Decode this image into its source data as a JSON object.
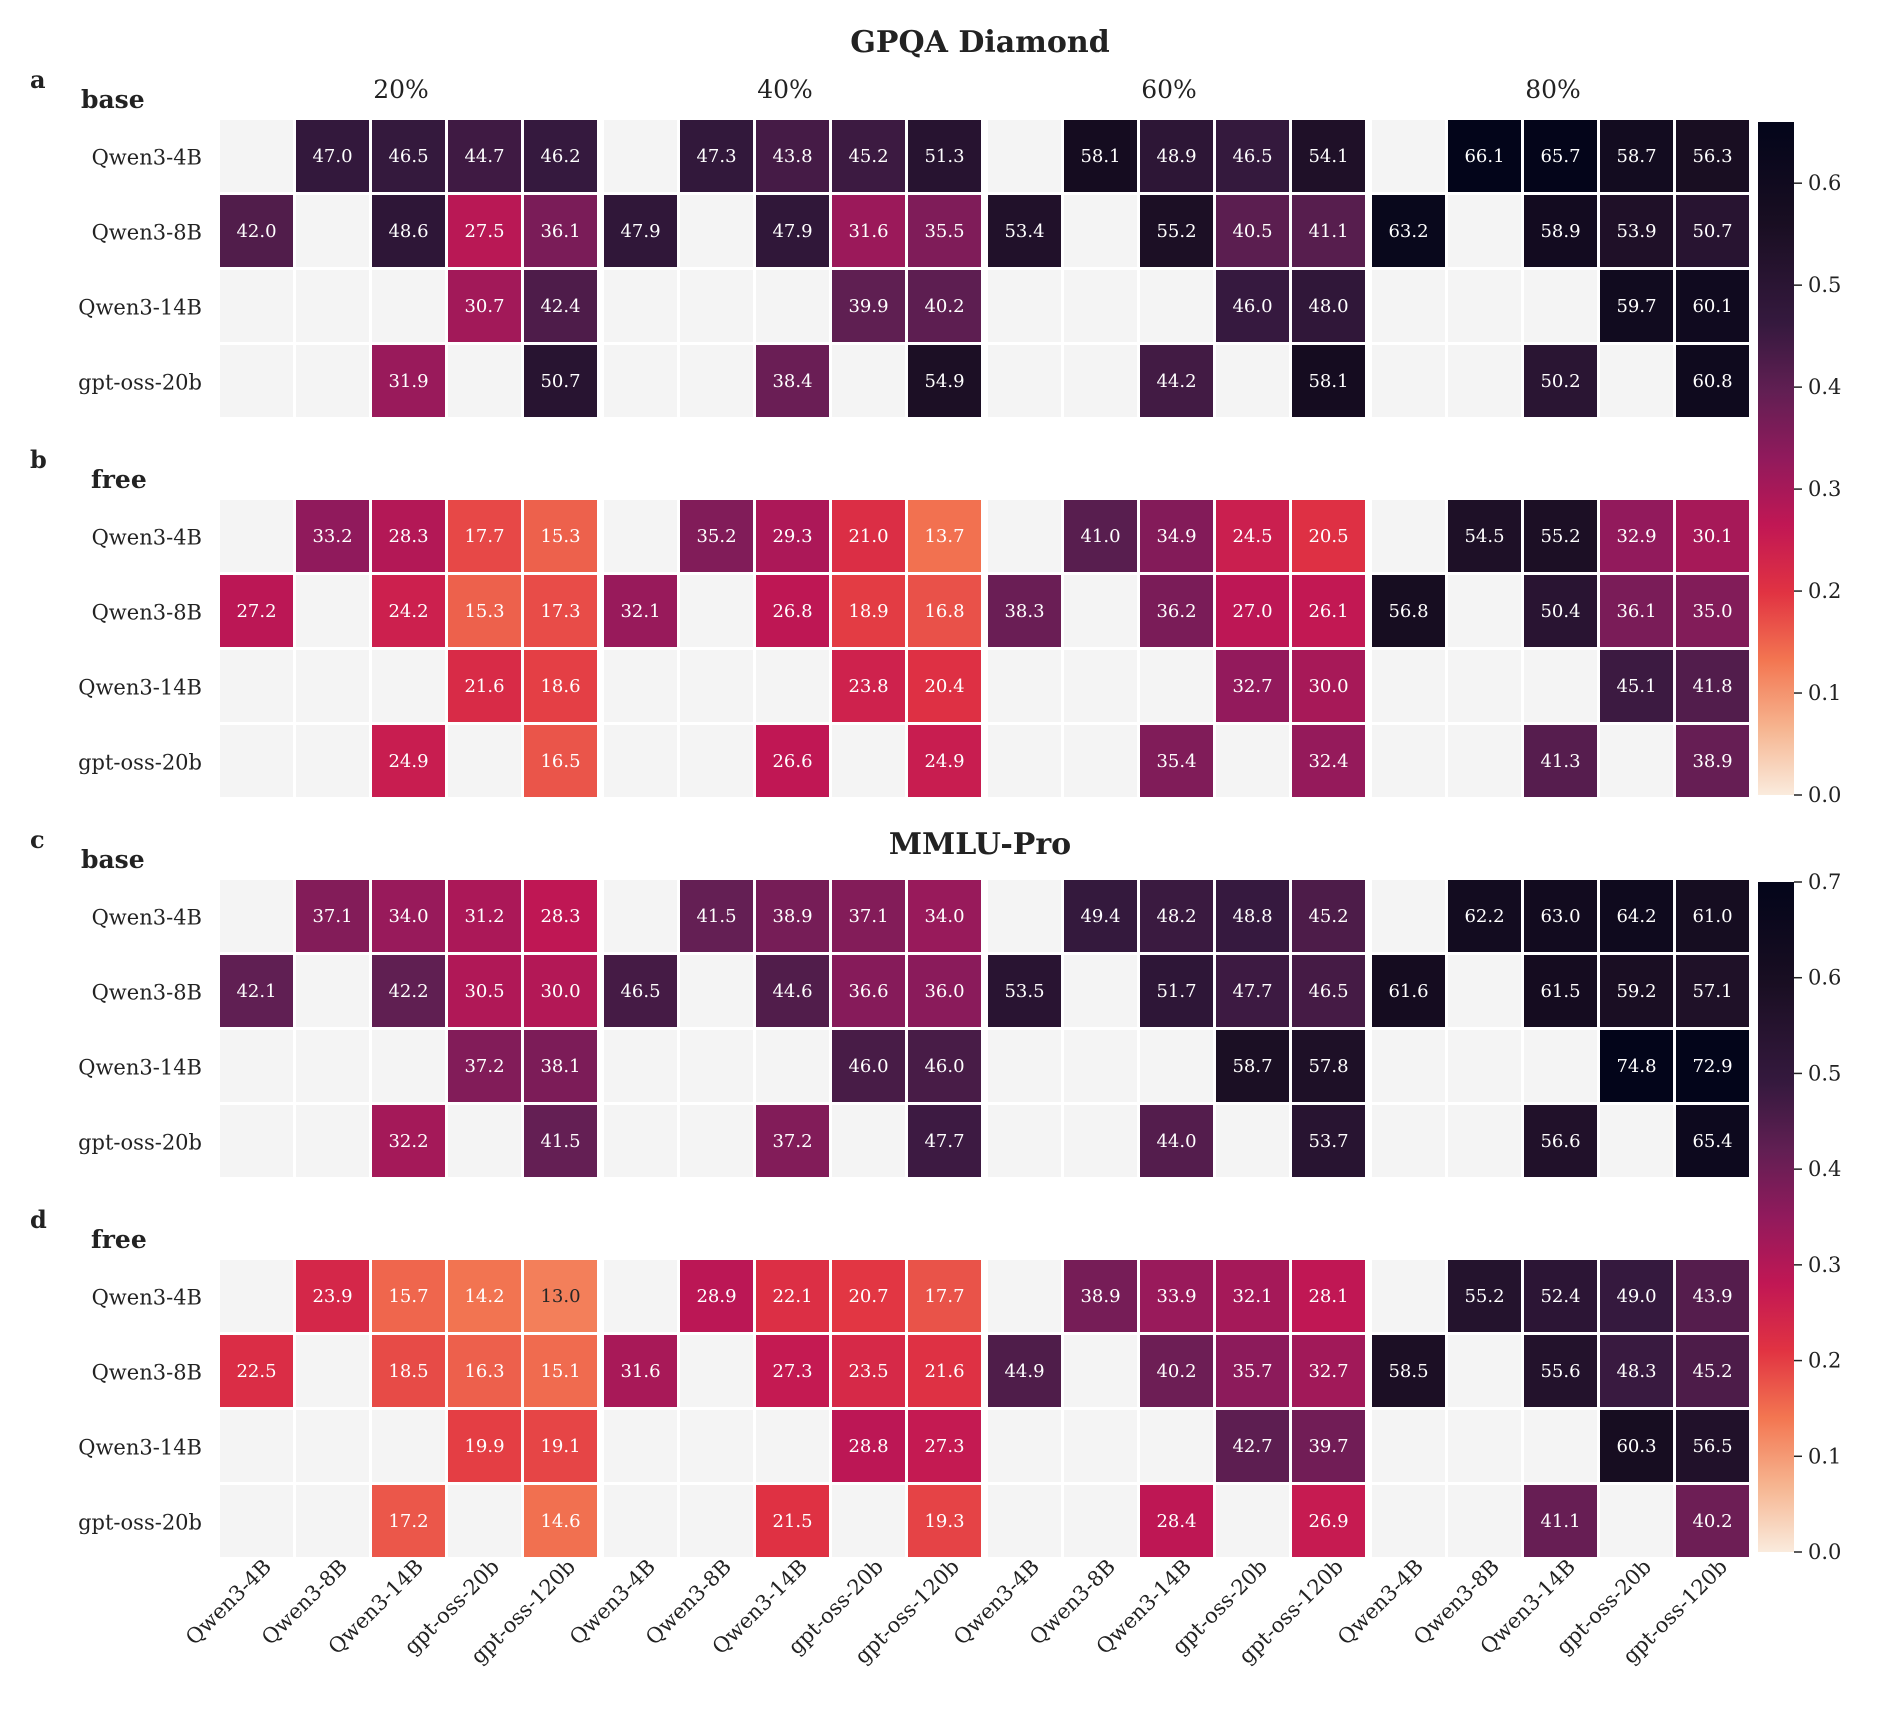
{
  "figure": {
    "titles": [
      "GPQA Diamond",
      "MMLU-Pro"
    ],
    "percentages": [
      "20%",
      "40%",
      "60%",
      "80%"
    ],
    "row_labels": [
      "Qwen3-4B",
      "Qwen3-8B",
      "Qwen3-14B",
      "gpt-oss-20b"
    ],
    "col_labels": [
      "Qwen3-4B",
      "Qwen3-8B",
      "Qwen3-14B",
      "gpt-oss-20b",
      "gpt-oss-120b"
    ]
  },
  "chart_data": [
    {
      "type": "heatmap",
      "panel": "a",
      "title": "GPQA Diamond",
      "label": "base",
      "vmax": 0.66,
      "colorbar_ticks": [
        "0.0",
        "0.1",
        "0.2",
        "0.3",
        "0.4",
        "0.5",
        "0.6"
      ],
      "groups": [
        {
          "pct": "20%",
          "cells": [
            [
              null,
              47.0,
              46.5,
              44.7,
              46.2
            ],
            [
              42.0,
              null,
              48.6,
              27.5,
              36.1
            ],
            [
              null,
              null,
              null,
              30.7,
              42.4
            ],
            [
              null,
              null,
              31.9,
              null,
              50.7
            ]
          ]
        },
        {
          "pct": "40%",
          "cells": [
            [
              null,
              47.3,
              43.8,
              45.2,
              51.3
            ],
            [
              47.9,
              null,
              47.9,
              31.6,
              35.5
            ],
            [
              null,
              null,
              null,
              39.9,
              40.2
            ],
            [
              null,
              null,
              38.4,
              null,
              54.9
            ]
          ]
        },
        {
          "pct": "60%",
          "cells": [
            [
              null,
              58.1,
              48.9,
              46.5,
              54.1
            ],
            [
              53.4,
              null,
              55.2,
              40.5,
              41.1
            ],
            [
              null,
              null,
              null,
              46.0,
              48.0
            ],
            [
              null,
              null,
              44.2,
              null,
              58.1
            ]
          ]
        },
        {
          "pct": "80%",
          "cells": [
            [
              null,
              66.1,
              65.7,
              58.7,
              56.3
            ],
            [
              63.2,
              null,
              58.9,
              53.9,
              50.7
            ],
            [
              null,
              null,
              null,
              59.7,
              60.1
            ],
            [
              null,
              null,
              50.2,
              null,
              60.8
            ]
          ]
        }
      ]
    },
    {
      "type": "heatmap",
      "panel": "b",
      "title": "GPQA Diamond",
      "label": "free",
      "vmax": 0.66,
      "groups": [
        {
          "pct": "20%",
          "cells": [
            [
              null,
              33.2,
              28.3,
              17.7,
              15.3
            ],
            [
              27.2,
              null,
              24.2,
              15.3,
              17.3
            ],
            [
              null,
              null,
              null,
              21.6,
              18.6
            ],
            [
              null,
              null,
              24.9,
              null,
              16.5
            ]
          ]
        },
        {
          "pct": "40%",
          "cells": [
            [
              null,
              35.2,
              29.3,
              21.0,
              13.7
            ],
            [
              32.1,
              null,
              26.8,
              18.9,
              16.8
            ],
            [
              null,
              null,
              null,
              23.8,
              20.4
            ],
            [
              null,
              null,
              26.6,
              null,
              24.9
            ]
          ]
        },
        {
          "pct": "60%",
          "cells": [
            [
              null,
              41.0,
              34.9,
              24.5,
              20.5
            ],
            [
              38.3,
              null,
              36.2,
              27.0,
              26.1
            ],
            [
              null,
              null,
              null,
              32.7,
              30.0
            ],
            [
              null,
              null,
              35.4,
              null,
              32.4
            ]
          ]
        },
        {
          "pct": "80%",
          "cells": [
            [
              null,
              54.5,
              55.2,
              32.9,
              30.1
            ],
            [
              56.8,
              null,
              50.4,
              36.1,
              35.0
            ],
            [
              null,
              null,
              null,
              45.1,
              41.8
            ],
            [
              null,
              null,
              41.3,
              null,
              38.9
            ]
          ]
        }
      ]
    },
    {
      "type": "heatmap",
      "panel": "c",
      "title": "MMLU-Pro",
      "label": "base",
      "vmax": 0.7,
      "colorbar_ticks": [
        "0.0",
        "0.1",
        "0.2",
        "0.3",
        "0.4",
        "0.5",
        "0.6",
        "0.7"
      ],
      "groups": [
        {
          "pct": "20%",
          "cells": [
            [
              null,
              37.1,
              34.0,
              31.2,
              28.3
            ],
            [
              42.1,
              null,
              42.2,
              30.5,
              30.0
            ],
            [
              null,
              null,
              null,
              37.2,
              38.1
            ],
            [
              null,
              null,
              32.2,
              null,
              41.5
            ]
          ]
        },
        {
          "pct": "40%",
          "cells": [
            [
              null,
              41.5,
              38.9,
              37.1,
              34.0
            ],
            [
              46.5,
              null,
              44.6,
              36.6,
              36.0
            ],
            [
              null,
              null,
              null,
              46.0,
              46.0
            ],
            [
              null,
              null,
              37.2,
              null,
              47.7
            ]
          ]
        },
        {
          "pct": "60%",
          "cells": [
            [
              null,
              49.4,
              48.2,
              48.8,
              45.2
            ],
            [
              53.5,
              null,
              51.7,
              47.7,
              46.5
            ],
            [
              null,
              null,
              null,
              58.7,
              57.8
            ],
            [
              null,
              null,
              44.0,
              null,
              53.7
            ]
          ]
        },
        {
          "pct": "80%",
          "cells": [
            [
              null,
              62.2,
              63.0,
              64.2,
              61.0
            ],
            [
              61.6,
              null,
              61.5,
              59.2,
              57.1
            ],
            [
              null,
              null,
              null,
              74.8,
              72.9
            ],
            [
              null,
              null,
              56.6,
              null,
              65.4
            ]
          ]
        }
      ]
    },
    {
      "type": "heatmap",
      "panel": "d",
      "title": "MMLU-Pro",
      "label": "free",
      "vmax": 0.7,
      "groups": [
        {
          "pct": "20%",
          "cells": [
            [
              null,
              23.9,
              15.7,
              14.2,
              13.0
            ],
            [
              22.5,
              null,
              18.5,
              16.3,
              15.1
            ],
            [
              null,
              null,
              null,
              19.9,
              19.1
            ],
            [
              null,
              null,
              17.2,
              null,
              14.6
            ]
          ]
        },
        {
          "pct": "40%",
          "cells": [
            [
              null,
              28.9,
              22.1,
              20.7,
              17.7
            ],
            [
              31.6,
              null,
              27.3,
              23.5,
              21.6
            ],
            [
              null,
              null,
              null,
              28.8,
              27.3
            ],
            [
              null,
              null,
              21.5,
              null,
              19.3
            ]
          ]
        },
        {
          "pct": "60%",
          "cells": [
            [
              null,
              38.9,
              33.9,
              32.1,
              28.1
            ],
            [
              44.9,
              null,
              40.2,
              35.7,
              32.7
            ],
            [
              null,
              null,
              null,
              42.7,
              39.7
            ],
            [
              null,
              null,
              28.4,
              null,
              26.9
            ]
          ]
        },
        {
          "pct": "80%",
          "cells": [
            [
              null,
              55.2,
              52.4,
              49.0,
              43.9
            ],
            [
              58.5,
              null,
              55.6,
              48.3,
              45.2
            ],
            [
              null,
              null,
              null,
              60.3,
              56.5
            ],
            [
              null,
              null,
              41.1,
              null,
              40.2
            ]
          ]
        }
      ]
    }
  ]
}
